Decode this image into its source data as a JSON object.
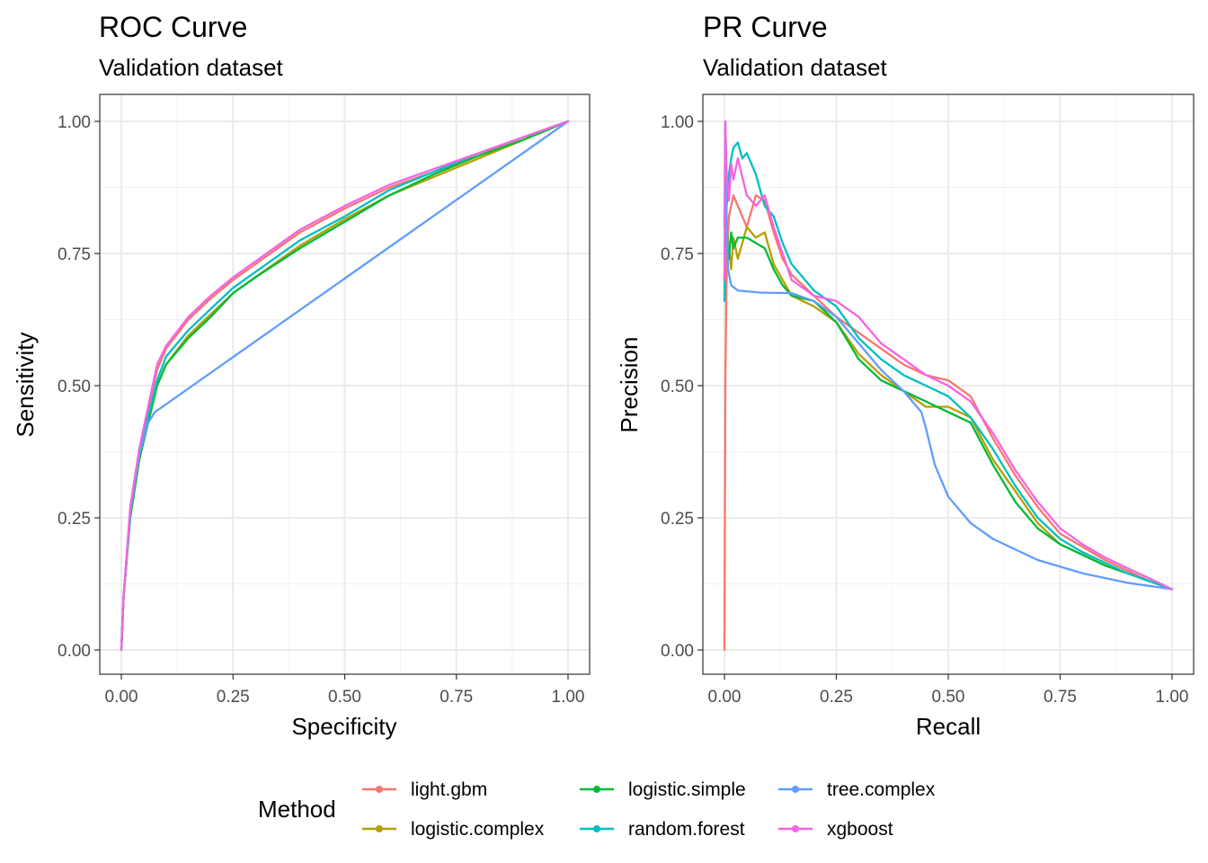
{
  "legend": {
    "title": "Method"
  },
  "colors": {
    "light.gbm": "#F8766D",
    "logistic.complex": "#B79F00",
    "logistic.simple": "#00BA38",
    "random.forest": "#00BFC4",
    "tree.complex": "#619CFF",
    "xgboost": "#F564E3"
  },
  "chart_data": [
    {
      "type": "line",
      "title": "ROC Curve",
      "subtitle": "Validation dataset",
      "xlabel": "Specificity",
      "ylabel": "Sensitivity",
      "xlim": [
        0,
        1
      ],
      "ylim": [
        0,
        1
      ],
      "xticks": [
        "0.00",
        "0.25",
        "0.50",
        "0.75",
        "1.00"
      ],
      "yticks": [
        "0.00",
        "0.25",
        "0.50",
        "0.75",
        "1.00"
      ],
      "grid": true,
      "legend_position": "bottom",
      "series": [
        {
          "name": "light.gbm",
          "x": [
            0,
            0.005,
            0.02,
            0.04,
            0.06,
            0.08,
            0.1,
            0.15,
            0.2,
            0.25,
            0.3,
            0.4,
            0.5,
            0.6,
            0.7,
            0.8,
            0.9,
            1.0
          ],
          "y": [
            0,
            0.1,
            0.26,
            0.37,
            0.45,
            0.53,
            0.57,
            0.625,
            0.665,
            0.7,
            0.73,
            0.79,
            0.835,
            0.875,
            0.905,
            0.935,
            0.97,
            1.0
          ]
        },
        {
          "name": "logistic.complex",
          "x": [
            0,
            0.005,
            0.02,
            0.04,
            0.06,
            0.08,
            0.1,
            0.15,
            0.2,
            0.25,
            0.3,
            0.4,
            0.5,
            0.6,
            0.7,
            0.8,
            0.9,
            1.0
          ],
          "y": [
            0,
            0.1,
            0.25,
            0.36,
            0.43,
            0.5,
            0.54,
            0.595,
            0.635,
            0.675,
            0.705,
            0.765,
            0.815,
            0.86,
            0.895,
            0.93,
            0.965,
            1.0
          ]
        },
        {
          "name": "logistic.simple",
          "x": [
            0,
            0.005,
            0.02,
            0.04,
            0.06,
            0.08,
            0.1,
            0.15,
            0.2,
            0.25,
            0.3,
            0.4,
            0.5,
            0.6,
            0.7,
            0.8,
            0.9,
            1.0
          ],
          "y": [
            0,
            0.1,
            0.25,
            0.36,
            0.43,
            0.5,
            0.54,
            0.59,
            0.63,
            0.675,
            0.705,
            0.76,
            0.81,
            0.86,
            0.9,
            0.935,
            0.965,
            1.0
          ]
        },
        {
          "name": "random.forest",
          "x": [
            0,
            0.005,
            0.02,
            0.04,
            0.06,
            0.08,
            0.1,
            0.15,
            0.2,
            0.25,
            0.3,
            0.4,
            0.5,
            0.6,
            0.7,
            0.8,
            0.9,
            1.0
          ],
          "y": [
            0,
            0.1,
            0.26,
            0.37,
            0.44,
            0.51,
            0.555,
            0.605,
            0.645,
            0.685,
            0.715,
            0.775,
            0.82,
            0.87,
            0.905,
            0.94,
            0.97,
            1.0
          ]
        },
        {
          "name": "tree.complex",
          "x": [
            0,
            0.005,
            0.02,
            0.04,
            0.06,
            0.075,
            1.0
          ],
          "y": [
            0,
            0.1,
            0.26,
            0.37,
            0.43,
            0.45,
            1.0
          ]
        },
        {
          "name": "xgboost",
          "x": [
            0,
            0.005,
            0.02,
            0.04,
            0.06,
            0.08,
            0.1,
            0.15,
            0.2,
            0.25,
            0.3,
            0.4,
            0.5,
            0.6,
            0.7,
            0.8,
            0.9,
            1.0
          ],
          "y": [
            0,
            0.1,
            0.27,
            0.38,
            0.46,
            0.54,
            0.575,
            0.63,
            0.67,
            0.705,
            0.735,
            0.795,
            0.84,
            0.88,
            0.91,
            0.94,
            0.97,
            1.0
          ]
        }
      ]
    },
    {
      "type": "line",
      "title": "PR Curve",
      "subtitle": "Validation dataset",
      "xlabel": "Recall",
      "ylabel": "Precision",
      "xlim": [
        0,
        1
      ],
      "ylim": [
        0,
        1
      ],
      "xticks": [
        "0.00",
        "0.25",
        "0.50",
        "0.75",
        "1.00"
      ],
      "yticks": [
        "0.00",
        "0.25",
        "0.50",
        "0.75",
        "1.00"
      ],
      "grid": true,
      "legend_position": "bottom",
      "series": [
        {
          "name": "light.gbm",
          "x": [
            0,
            0.002,
            0.004,
            0.006,
            0.01,
            0.02,
            0.03,
            0.05,
            0.07,
            0.09,
            0.11,
            0.13,
            0.15,
            0.2,
            0.25,
            0.3,
            0.35,
            0.4,
            0.45,
            0.5,
            0.55,
            0.6,
            0.65,
            0.7,
            0.75,
            0.8,
            0.85,
            0.9,
            0.95,
            1.0
          ],
          "y": [
            0,
            0.5,
            0.66,
            0.75,
            0.82,
            0.86,
            0.84,
            0.8,
            0.86,
            0.85,
            0.79,
            0.74,
            0.71,
            0.67,
            0.63,
            0.6,
            0.57,
            0.54,
            0.52,
            0.51,
            0.48,
            0.4,
            0.33,
            0.27,
            0.22,
            0.195,
            0.17,
            0.15,
            0.13,
            0.115
          ]
        },
        {
          "name": "logistic.complex",
          "x": [
            0,
            0.002,
            0.005,
            0.01,
            0.015,
            0.02,
            0.03,
            0.05,
            0.07,
            0.09,
            0.11,
            0.13,
            0.15,
            0.2,
            0.25,
            0.3,
            0.35,
            0.4,
            0.45,
            0.5,
            0.55,
            0.6,
            0.65,
            0.7,
            0.75,
            0.8,
            0.85,
            0.9,
            0.95,
            1.0
          ],
          "y": [
            0.7,
            0.85,
            0.8,
            0.76,
            0.72,
            0.78,
            0.74,
            0.8,
            0.78,
            0.79,
            0.73,
            0.7,
            0.67,
            0.65,
            0.62,
            0.56,
            0.52,
            0.49,
            0.46,
            0.46,
            0.44,
            0.36,
            0.3,
            0.24,
            0.2,
            0.18,
            0.16,
            0.145,
            0.13,
            0.115
          ]
        },
        {
          "name": "logistic.simple",
          "x": [
            0,
            0.002,
            0.005,
            0.01,
            0.015,
            0.02,
            0.03,
            0.05,
            0.07,
            0.09,
            0.11,
            0.13,
            0.15,
            0.2,
            0.25,
            0.3,
            0.35,
            0.4,
            0.45,
            0.5,
            0.55,
            0.6,
            0.65,
            0.7,
            0.75,
            0.8,
            0.85,
            0.9,
            0.95,
            1.0
          ],
          "y": [
            0.7,
            0.84,
            0.78,
            0.74,
            0.79,
            0.76,
            0.78,
            0.78,
            0.77,
            0.76,
            0.72,
            0.69,
            0.67,
            0.66,
            0.62,
            0.55,
            0.51,
            0.49,
            0.47,
            0.45,
            0.43,
            0.35,
            0.28,
            0.23,
            0.2,
            0.18,
            0.16,
            0.145,
            0.13,
            0.115
          ]
        },
        {
          "name": "random.forest",
          "x": [
            0,
            0.002,
            0.005,
            0.01,
            0.015,
            0.02,
            0.03,
            0.04,
            0.05,
            0.07,
            0.09,
            0.11,
            0.13,
            0.15,
            0.2,
            0.25,
            0.3,
            0.35,
            0.4,
            0.45,
            0.5,
            0.55,
            0.6,
            0.65,
            0.7,
            0.75,
            0.8,
            0.85,
            0.9,
            0.95,
            1.0
          ],
          "y": [
            0.66,
            0.8,
            0.84,
            0.9,
            0.93,
            0.95,
            0.96,
            0.93,
            0.94,
            0.9,
            0.84,
            0.82,
            0.77,
            0.73,
            0.68,
            0.65,
            0.59,
            0.55,
            0.52,
            0.5,
            0.48,
            0.44,
            0.38,
            0.31,
            0.25,
            0.21,
            0.185,
            0.165,
            0.145,
            0.13,
            0.115
          ]
        },
        {
          "name": "tree.complex",
          "x": [
            0,
            0.002,
            0.004,
            0.008,
            0.015,
            0.03,
            0.08,
            0.15,
            0.2,
            0.25,
            0.3,
            0.35,
            0.4,
            0.44,
            0.45,
            0.47,
            0.5,
            0.55,
            0.6,
            0.7,
            0.8,
            0.9,
            1.0
          ],
          "y": [
            0.8,
            1.0,
            0.85,
            0.72,
            0.69,
            0.68,
            0.676,
            0.675,
            0.66,
            0.63,
            0.58,
            0.53,
            0.49,
            0.45,
            0.42,
            0.35,
            0.29,
            0.24,
            0.21,
            0.17,
            0.145,
            0.127,
            0.115
          ]
        },
        {
          "name": "xgboost",
          "x": [
            0,
            0.002,
            0.005,
            0.01,
            0.015,
            0.02,
            0.03,
            0.05,
            0.07,
            0.09,
            0.11,
            0.13,
            0.15,
            0.2,
            0.25,
            0.3,
            0.35,
            0.4,
            0.45,
            0.5,
            0.55,
            0.6,
            0.65,
            0.7,
            0.75,
            0.8,
            0.85,
            0.9,
            0.95,
            1.0
          ],
          "y": [
            0.7,
            1.0,
            0.9,
            0.85,
            0.92,
            0.89,
            0.93,
            0.86,
            0.84,
            0.86,
            0.8,
            0.75,
            0.7,
            0.67,
            0.66,
            0.63,
            0.58,
            0.55,
            0.52,
            0.5,
            0.47,
            0.41,
            0.34,
            0.28,
            0.23,
            0.2,
            0.175,
            0.155,
            0.135,
            0.115
          ]
        }
      ]
    }
  ]
}
